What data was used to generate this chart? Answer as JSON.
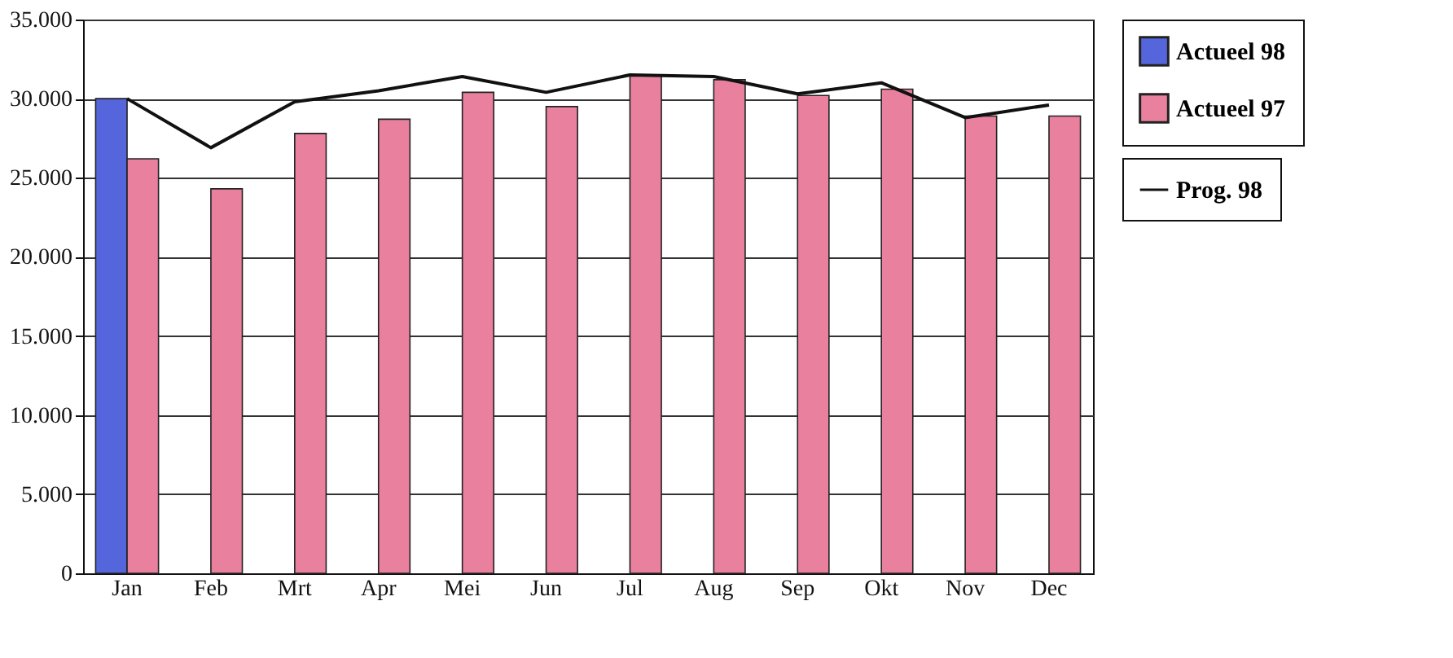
{
  "chart_data": {
    "type": "bar",
    "categories": [
      "Jan",
      "Feb",
      "Mrt",
      "Apr",
      "Mei",
      "Jun",
      "Jul",
      "Aug",
      "Sep",
      "Okt",
      "Nov",
      "Dec"
    ],
    "series": [
      {
        "name": "Prog. 98",
        "type": "line",
        "color": "#111111",
        "values": [
          30000,
          26900,
          29800,
          30500,
          31400,
          30400,
          31500,
          31400,
          30300,
          31000,
          28800,
          29600
        ]
      },
      {
        "name": "Actueel 98",
        "color": "#5566dd",
        "values": [
          30000,
          null,
          null,
          null,
          null,
          null,
          null,
          null,
          null,
          null,
          null,
          null
        ]
      },
      {
        "name": "Actueel 97",
        "color": "#e8809e",
        "values": [
          26200,
          24300,
          27800,
          28700,
          30400,
          29500,
          31500,
          31200,
          30200,
          30600,
          28900,
          28900
        ]
      }
    ],
    "ylim": [
      0,
      35000
    ],
    "yticks": [
      0,
      {
        "value": 5000,
        "label": "5.000"
      },
      {
        "value": 10000,
        "label": "10.000"
      },
      {
        "value": 15000,
        "label": "15.000"
      },
      {
        "value": 20000,
        "label": "20.000"
      },
      {
        "value": 25000,
        "label": "25.000"
      },
      {
        "value": 30000,
        "label": "30.000"
      },
      {
        "value": 35000,
        "label": "35.000"
      }
    ],
    "grid": "y",
    "legend": "right",
    "line_style": "solid"
  }
}
